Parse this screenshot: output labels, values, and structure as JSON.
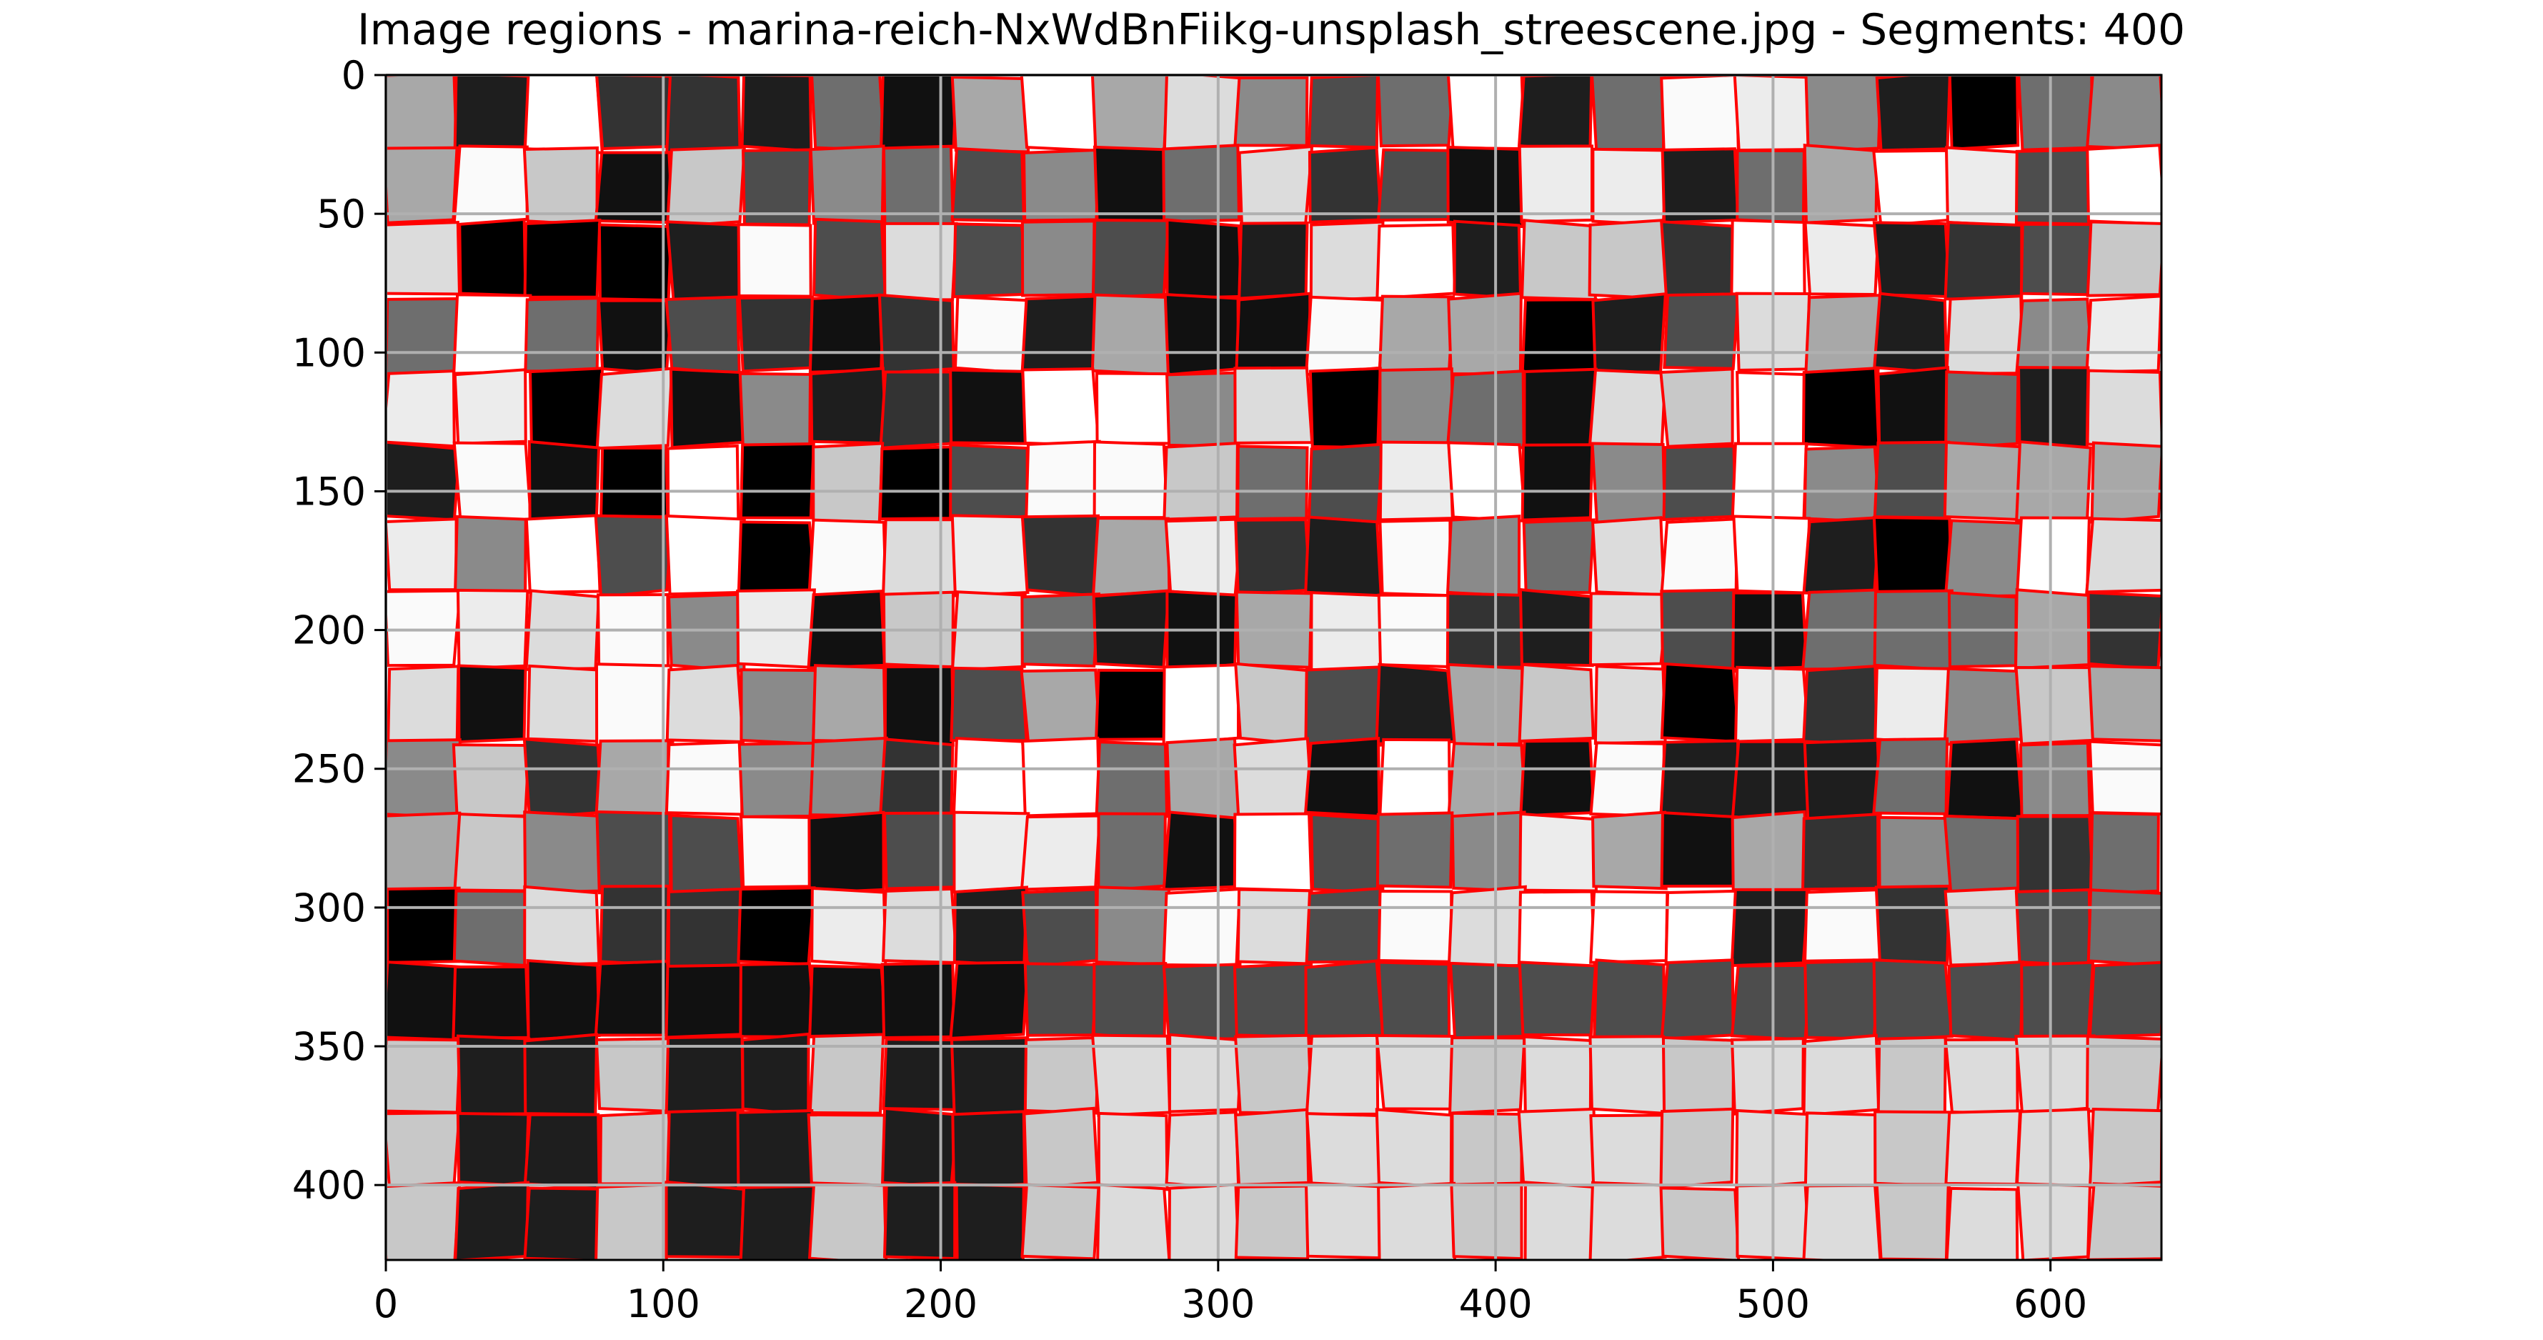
{
  "title": "Image regions - marina-reich-NxWdBnFiikg-unsplash_streescene.jpg - Segments: 400",
  "axes": {
    "x_ticks": [
      {
        "value": 0,
        "label": "0"
      },
      {
        "value": 100,
        "label": "100"
      },
      {
        "value": 200,
        "label": "200"
      },
      {
        "value": 300,
        "label": "300"
      },
      {
        "value": 400,
        "label": "400"
      },
      {
        "value": 500,
        "label": "500"
      },
      {
        "value": 600,
        "label": "600"
      }
    ],
    "y_ticks": [
      {
        "value": 0,
        "label": "0"
      },
      {
        "value": 50,
        "label": "50"
      },
      {
        "value": 100,
        "label": "100"
      },
      {
        "value": 150,
        "label": "150"
      },
      {
        "value": 200,
        "label": "200"
      },
      {
        "value": 250,
        "label": "250"
      },
      {
        "value": 300,
        "label": "300"
      },
      {
        "value": 350,
        "label": "350"
      },
      {
        "value": 400,
        "label": "400"
      }
    ],
    "x_range": [
      0,
      640
    ],
    "y_range": [
      0,
      427
    ],
    "y_inverted": true,
    "grid": true
  },
  "image": {
    "content": "grayscale superpixel segmentation of a street scene with red region boundaries",
    "segment_count": 400
  },
  "colors": {
    "boundary": "#ff0000",
    "grid": "#b0b0b0",
    "axis": "#000000"
  }
}
